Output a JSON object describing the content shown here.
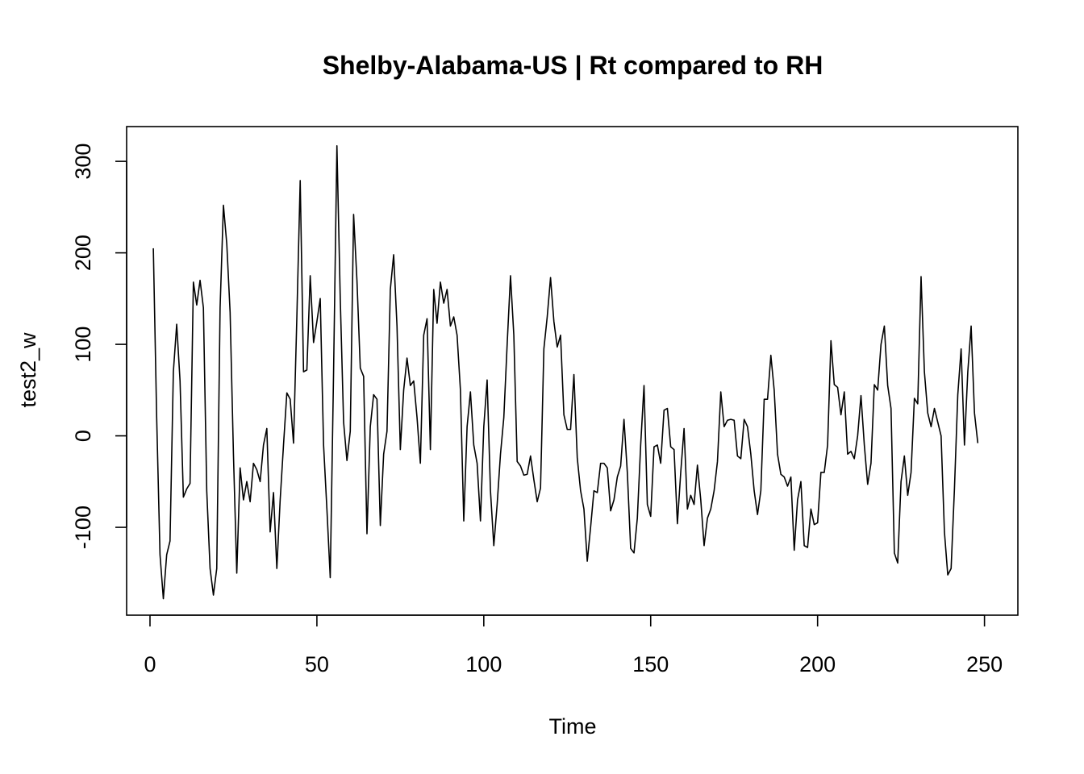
{
  "chart_data": {
    "type": "line",
    "title": "Shelby-Alabama-US | Rt compared to RH",
    "xlabel": "Time",
    "ylabel": "test2_w",
    "xlim": [
      -7,
      260
    ],
    "ylim": [
      -196,
      338
    ],
    "xticks": [
      0,
      50,
      100,
      150,
      200,
      250
    ],
    "yticks": [
      -100,
      0,
      100,
      200,
      300
    ],
    "grid": false,
    "series": [
      {
        "x": [
          1,
          2,
          3,
          4,
          5,
          6,
          7,
          8,
          9,
          10,
          11,
          12,
          13,
          14,
          15,
          16,
          17,
          18,
          19,
          20,
          21,
          22,
          23,
          24,
          25,
          26,
          27,
          28,
          29,
          30,
          31,
          32,
          33,
          34,
          35,
          36,
          37,
          38,
          39,
          40,
          41,
          42,
          43,
          44,
          45,
          46,
          47,
          48,
          49,
          50,
          51,
          52,
          53,
          54,
          55,
          56,
          57,
          58,
          59,
          60,
          61,
          62,
          63,
          64,
          65,
          66,
          67,
          68,
          69,
          70,
          71,
          72,
          73,
          74,
          75,
          76,
          77,
          78,
          79,
          80,
          81,
          82,
          83,
          84,
          85,
          86,
          87,
          88,
          89,
          90,
          91,
          92,
          93,
          94,
          95,
          96,
          97,
          98,
          99,
          100,
          101,
          102,
          103,
          104,
          105,
          106,
          107,
          108,
          109,
          110,
          111,
          112,
          113,
          114,
          115,
          116,
          117,
          118,
          119,
          120,
          121,
          122,
          123,
          124,
          125,
          126,
          127,
          128,
          129,
          130,
          131,
          132,
          133,
          134,
          135,
          136,
          137,
          138,
          139,
          140,
          141,
          142,
          143,
          144,
          145,
          146,
          147,
          148,
          149,
          150,
          151,
          152,
          153,
          154,
          155,
          156,
          157,
          158,
          159,
          160,
          161,
          162,
          163,
          164,
          165,
          166,
          167,
          168,
          169,
          170,
          171,
          172,
          173,
          174,
          175,
          176,
          177,
          178,
          179,
          180,
          181,
          182,
          183,
          184,
          185,
          186,
          187,
          188,
          189,
          190,
          191,
          192,
          193,
          194,
          195,
          196,
          197,
          198,
          199,
          200,
          201,
          202,
          203,
          204,
          205,
          206,
          207,
          208,
          209,
          210,
          211,
          212,
          213,
          214,
          215,
          216,
          217,
          218,
          219,
          220,
          221,
          222,
          223,
          224,
          225,
          226,
          227,
          228,
          229,
          230,
          231,
          232,
          233,
          234,
          235,
          236,
          237,
          238,
          239,
          240,
          241,
          242,
          243,
          244,
          245,
          246,
          247,
          248
        ],
        "values": [
          205,
          20,
          -130,
          -178,
          -130,
          -115,
          70,
          122,
          60,
          -67,
          -58,
          -52,
          168,
          143,
          170,
          140,
          -60,
          -145,
          -174,
          -145,
          140,
          252,
          210,
          135,
          -20,
          -150,
          -35,
          -70,
          -50,
          -72,
          -30,
          -37,
          -50,
          -10,
          8,
          -105,
          -62,
          -145,
          -70,
          -10,
          47,
          40,
          -8,
          130,
          279,
          70,
          72,
          175,
          102,
          125,
          150,
          -10,
          -80,
          -155,
          70,
          317,
          150,
          15,
          -27,
          5,
          242,
          170,
          74,
          65,
          -107,
          10,
          45,
          40,
          -98,
          -20,
          5,
          160,
          198,
          120,
          -15,
          50,
          85,
          55,
          60,
          20,
          -30,
          110,
          128,
          -15,
          160,
          123,
          168,
          145,
          160,
          120,
          130,
          110,
          50,
          -93,
          10,
          48,
          -10,
          -30,
          -93,
          10,
          61,
          -60,
          -120,
          -75,
          -20,
          20,
          100,
          175,
          110,
          -28,
          -33,
          -43,
          -42,
          -22,
          -48,
          -72,
          -57,
          95,
          130,
          173,
          125,
          97,
          110,
          23,
          7,
          7,
          67,
          -24,
          -60,
          -80,
          -137,
          -100,
          -60,
          -62,
          -30,
          -30,
          -35,
          -82,
          -70,
          -45,
          -33,
          18,
          -40,
          -123,
          -128,
          -90,
          -10,
          55,
          -75,
          -88,
          -12,
          -10,
          -30,
          28,
          30,
          -12,
          -15,
          -96,
          -40,
          8,
          -80,
          -65,
          -75,
          -32,
          -70,
          -120,
          -90,
          -80,
          -60,
          -28,
          48,
          10,
          17,
          18,
          17,
          -22,
          -25,
          18,
          10,
          -20,
          -60,
          -86,
          -60,
          40,
          40,
          88,
          50,
          -20,
          -42,
          -45,
          -55,
          -45,
          -125,
          -70,
          -50,
          -120,
          -122,
          -80,
          -97,
          -95,
          -40,
          -40,
          -10,
          104,
          56,
          53,
          23,
          48,
          -20,
          -17,
          -25,
          0,
          44,
          -10,
          -53,
          -30,
          56,
          50,
          100,
          120,
          55,
          30,
          -128,
          -139,
          -50,
          -22,
          -65,
          -40,
          41,
          35,
          174,
          70,
          25,
          10,
          30,
          15,
          0,
          -105,
          -152,
          -145,
          -58,
          45,
          95,
          -10,
          70,
          120,
          25,
          -8
        ]
      }
    ]
  }
}
